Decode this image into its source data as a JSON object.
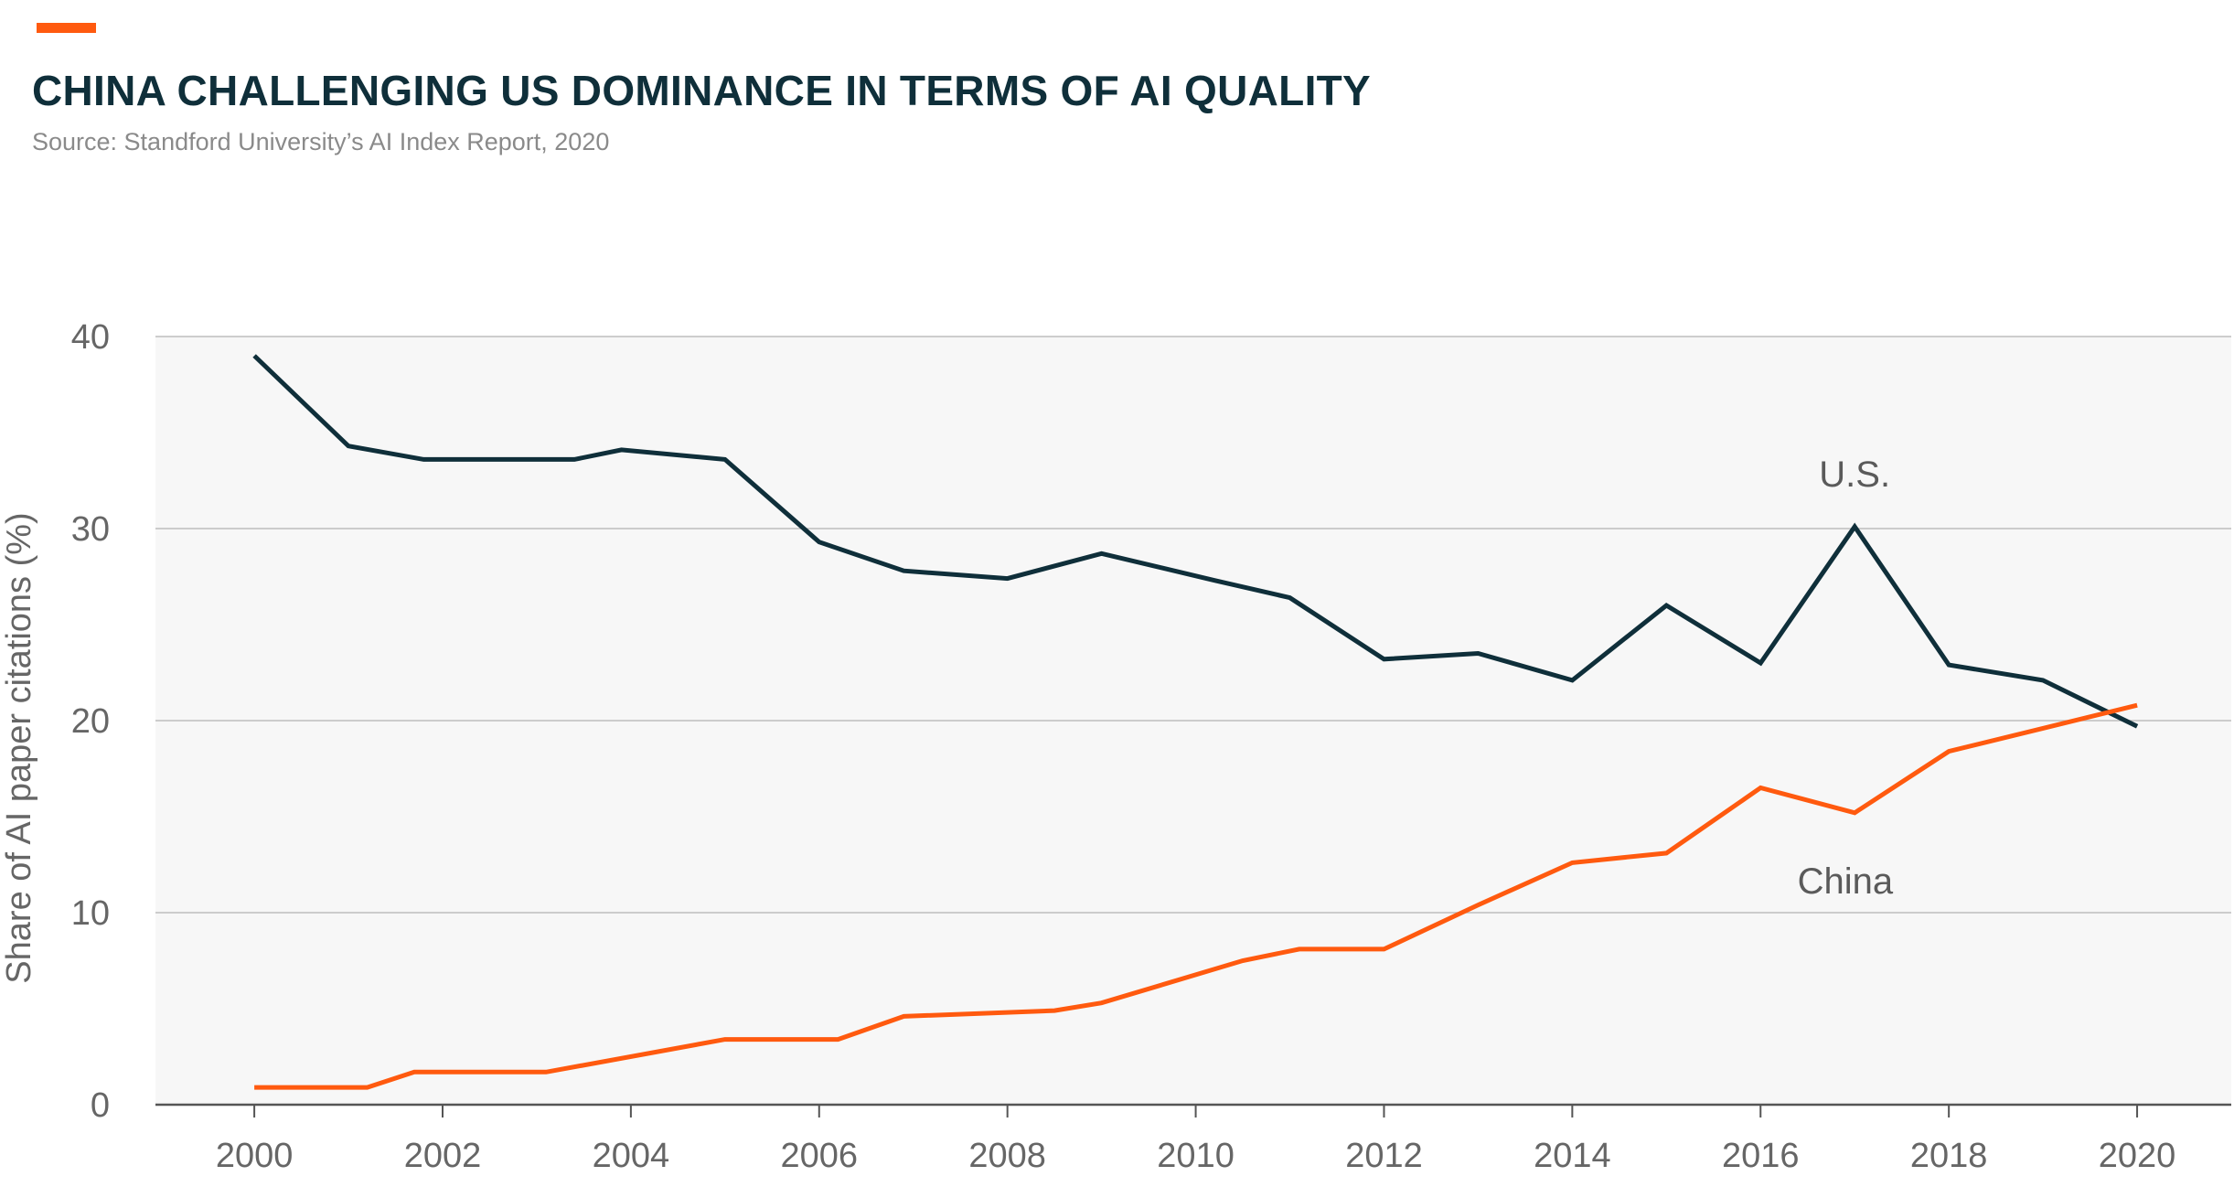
{
  "header": {
    "title": "CHINA CHALLENGING US DOMINANCE IN TERMS OF AI QUALITY",
    "subtitle": "Source: Standford University’s AI Index Report, 2020"
  },
  "colors": {
    "accent": "#ff5a0f",
    "us_line": "#0f2f3a",
    "china_line": "#ff5a0f",
    "plot_bg": "#f7f7f7",
    "grid": "#bdbdbd",
    "axis": "#555555",
    "tick_text": "#666666"
  },
  "chart_data": {
    "type": "line",
    "title": "CHINA CHALLENGING US DOMINANCE IN TERMS OF AI QUALITY",
    "xlabel": "",
    "ylabel": "Share of AI paper citations (%)",
    "xlim": [
      1998.95,
      2021
    ],
    "ylim": [
      0,
      40
    ],
    "x_ticks": [
      2000,
      2002,
      2004,
      2006,
      2008,
      2010,
      2012,
      2014,
      2016,
      2018,
      2020
    ],
    "y_ticks": [
      0,
      10,
      20,
      30,
      40
    ],
    "grid": true,
    "legend": "inline labels",
    "series": [
      {
        "name": "U.S.",
        "x": [
          2000,
          2001,
          2001.8,
          2003.4,
          2003.9,
          2005,
          2006,
          2006.9,
          2008,
          2009,
          2010.2,
          2011,
          2012,
          2013,
          2014,
          2015,
          2016,
          2017,
          2018,
          2019,
          2020
        ],
        "y": [
          39,
          34.3,
          33.6,
          33.6,
          34.1,
          33.6,
          29.3,
          27.8,
          27.4,
          28.7,
          27.3,
          26.4,
          23.2,
          23.5,
          22.1,
          26,
          23,
          30.1,
          22.9,
          22.1,
          19.7
        ]
      },
      {
        "name": "China",
        "x": [
          2000,
          2001.2,
          2001.7,
          2003.1,
          2005,
          2006.2,
          2006.9,
          2008.5,
          2009,
          2010.5,
          2011.1,
          2012,
          2013,
          2014,
          2015,
          2016,
          2017,
          2018,
          2019,
          2020
        ],
        "y": [
          0.9,
          0.9,
          1.7,
          1.7,
          3.4,
          3.4,
          4.6,
          4.9,
          5.3,
          7.5,
          8.1,
          8.1,
          10.4,
          12.6,
          13.1,
          16.5,
          15.2,
          18.4,
          19.6,
          20.8
        ]
      }
    ]
  }
}
